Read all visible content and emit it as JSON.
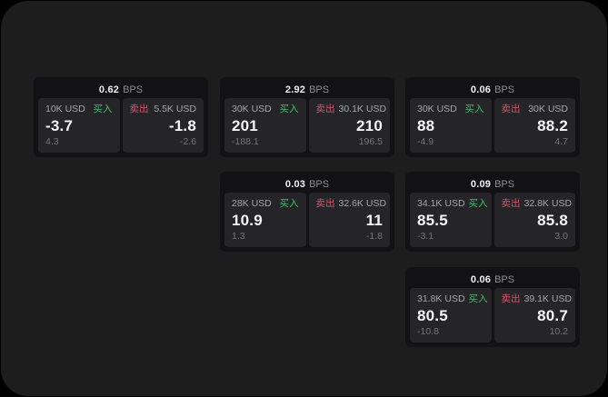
{
  "labels": {
    "bps_unit": "BPS",
    "buy": "买入",
    "sell": "卖出"
  },
  "colors": {
    "screen_bg": "#1d1d1e",
    "card_bg": "#121214",
    "panel_bg": "#252528",
    "buy_green": "#3fbd71",
    "sell_red": "#dc4f6d"
  },
  "cards": [
    {
      "bps": "0.62",
      "buy": {
        "amount": "10K USD",
        "value": "-3.7",
        "sub": "4.3"
      },
      "sell": {
        "amount": "5.5K USD",
        "value": "-1.8",
        "sub": "-2.6"
      }
    },
    {
      "bps": "2.92",
      "buy": {
        "amount": "30K USD",
        "value": "201",
        "sub": "-188.1"
      },
      "sell": {
        "amount": "30.1K USD",
        "value": "210",
        "sub": "196.5"
      }
    },
    {
      "bps": "0.06",
      "buy": {
        "amount": "30K USD",
        "value": "88",
        "sub": "-4.9"
      },
      "sell": {
        "amount": "30K USD",
        "value": "88.2",
        "sub": "4.7"
      }
    },
    {
      "bps": "0.03",
      "buy": {
        "amount": "28K USD",
        "value": "10.9",
        "sub": "1.3"
      },
      "sell": {
        "amount": "32.6K USD",
        "value": "11",
        "sub": "-1.8"
      }
    },
    {
      "bps": "0.09",
      "buy": {
        "amount": "34.1K USD",
        "value": "85.5",
        "sub": "-3.1"
      },
      "sell": {
        "amount": "32.8K USD",
        "value": "85.8",
        "sub": "3.0"
      }
    },
    {
      "bps": "0.06",
      "buy": {
        "amount": "31.8K USD",
        "value": "80.5",
        "sub": "-10.8"
      },
      "sell": {
        "amount": "39.1K USD",
        "value": "80.7",
        "sub": "10.2"
      }
    }
  ]
}
